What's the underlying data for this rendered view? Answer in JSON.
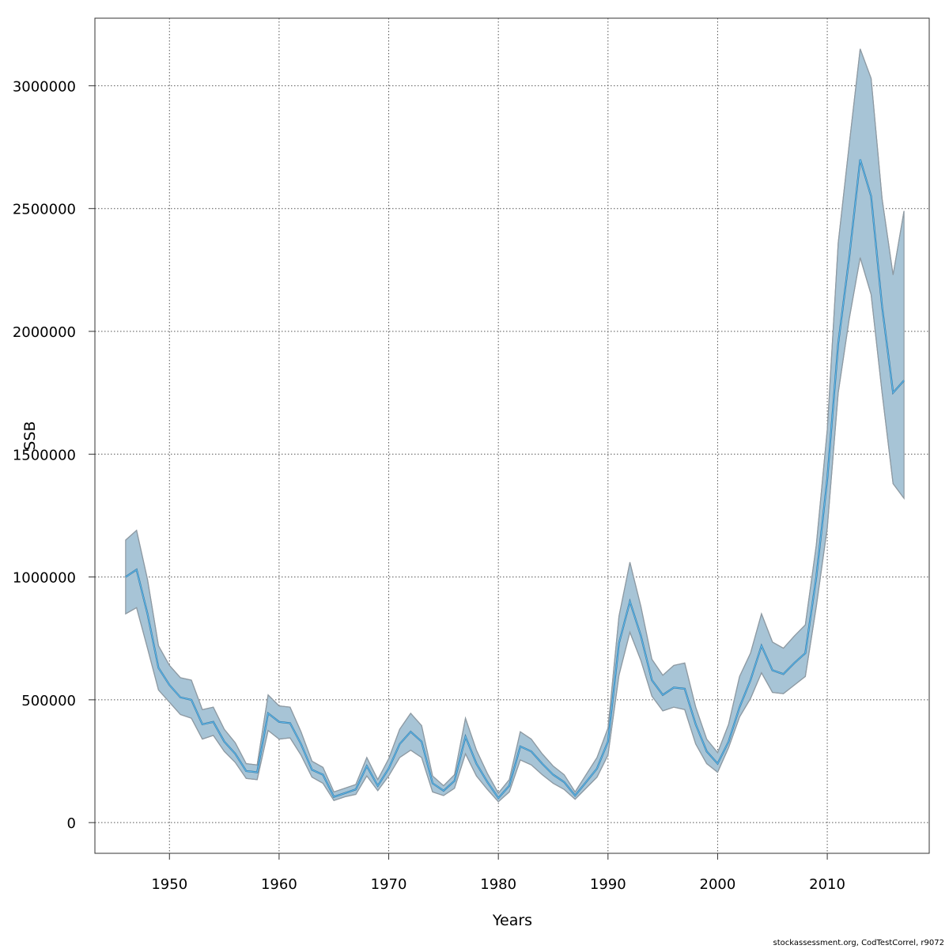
{
  "chart_data": {
    "type": "line",
    "title": "",
    "xlabel": "Years",
    "ylabel": "SSB",
    "xlim": [
      1943.2,
      2019.3
    ],
    "ylim": [
      -125000,
      3275000
    ],
    "x_ticks": [
      1950,
      1960,
      1970,
      1980,
      1990,
      2000,
      2010
    ],
    "y_ticks": [
      0,
      500000,
      1000000,
      1500000,
      2000000,
      2500000,
      3000000
    ],
    "grid": true,
    "colors": {
      "band_fill": "#a7c4d6",
      "band_edge": "#8e9aa3",
      "estimate_line": "#2f6f9a",
      "highlight_line": "#5fb8ea"
    },
    "x": [
      1946,
      1947,
      1948,
      1949,
      1950,
      1951,
      1952,
      1953,
      1954,
      1955,
      1956,
      1957,
      1958,
      1959,
      1960,
      1961,
      1962,
      1963,
      1964,
      1965,
      1966,
      1967,
      1968,
      1969,
      1970,
      1971,
      1972,
      1973,
      1974,
      1975,
      1976,
      1977,
      1978,
      1979,
      1980,
      1981,
      1982,
      1983,
      1984,
      1985,
      1986,
      1987,
      1988,
      1989,
      1990,
      1991,
      1992,
      1993,
      1994,
      1995,
      1996,
      1997,
      1998,
      1999,
      2000,
      2001,
      2002,
      2003,
      2004,
      2005,
      2006,
      2007,
      2008,
      2009,
      2010,
      2011,
      2012,
      2013,
      2014,
      2015,
      2016,
      2017
    ],
    "series": [
      {
        "role": "estimate",
        "values": [
          1000000,
          1030000,
          850000,
          630000,
          560000,
          510000,
          500000,
          400000,
          410000,
          330000,
          280000,
          210000,
          205000,
          445000,
          410000,
          405000,
          320000,
          215000,
          195000,
          105000,
          120000,
          135000,
          230000,
          150000,
          220000,
          320000,
          370000,
          330000,
          160000,
          130000,
          170000,
          350000,
          240000,
          165000,
          100000,
          150000,
          310000,
          290000,
          240000,
          195000,
          165000,
          110000,
          165000,
          220000,
          330000,
          730000,
          900000,
          760000,
          580000,
          520000,
          550000,
          545000,
          400000,
          290000,
          240000,
          330000,
          470000,
          580000,
          720000,
          620000,
          605000,
          650000,
          690000,
          1000000,
          1400000,
          1950000,
          2300000,
          2700000,
          2550000,
          2100000,
          1750000,
          1800000
        ]
      },
      {
        "role": "lower",
        "values": [
          850000,
          875000,
          710000,
          540000,
          490000,
          440000,
          425000,
          340000,
          355000,
          290000,
          245000,
          180000,
          175000,
          375000,
          340000,
          345000,
          275000,
          185000,
          160000,
          90000,
          105000,
          115000,
          190000,
          130000,
          190000,
          265000,
          295000,
          265000,
          125000,
          110000,
          140000,
          280000,
          190000,
          135000,
          85000,
          125000,
          255000,
          235000,
          195000,
          160000,
          135000,
          95000,
          140000,
          185000,
          275000,
          600000,
          775000,
          660000,
          515000,
          455000,
          470000,
          460000,
          320000,
          240000,
          205000,
          305000,
          430000,
          505000,
          610000,
          530000,
          525000,
          560000,
          595000,
          880000,
          1200000,
          1750000,
          2050000,
          2300000,
          2150000,
          1750000,
          1380000,
          1320000
        ]
      },
      {
        "role": "upper",
        "values": [
          1150000,
          1190000,
          990000,
          720000,
          640000,
          590000,
          580000,
          460000,
          470000,
          380000,
          325000,
          240000,
          235000,
          520000,
          475000,
          470000,
          370000,
          250000,
          225000,
          125000,
          140000,
          155000,
          265000,
          175000,
          260000,
          380000,
          445000,
          395000,
          190000,
          150000,
          195000,
          425000,
          295000,
          200000,
          120000,
          175000,
          370000,
          340000,
          280000,
          230000,
          195000,
          125000,
          195000,
          265000,
          385000,
          840000,
          1060000,
          880000,
          665000,
          600000,
          640000,
          650000,
          470000,
          340000,
          285000,
          400000,
          595000,
          690000,
          850000,
          735000,
          710000,
          760000,
          805000,
          1130000,
          1600000,
          2360000,
          2760000,
          3150000,
          3030000,
          2540000,
          2230000,
          2490000
        ]
      }
    ]
  },
  "footer": {
    "credit": "stockassessment.org, CodTestCorrel, r9072"
  }
}
